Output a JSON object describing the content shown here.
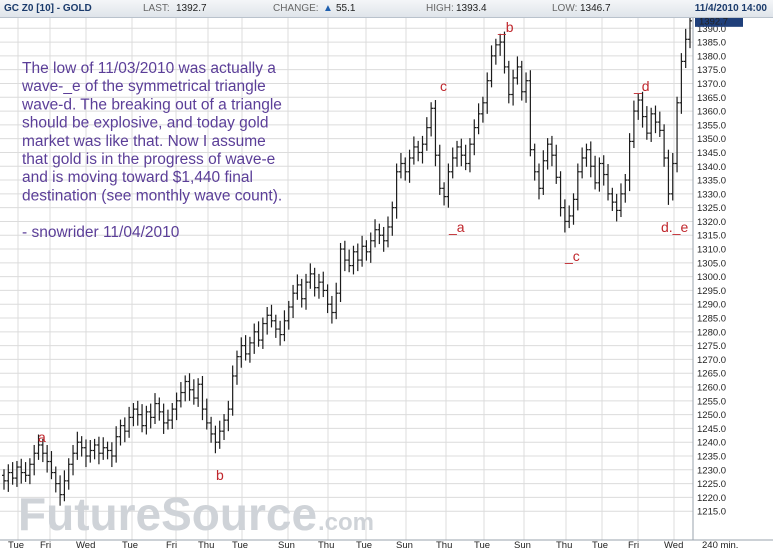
{
  "header": {
    "symbol": "GC Z0 [10] - GOLD",
    "last_label": "LAST:",
    "last_value": "1392.7",
    "change_label": "CHANGE:",
    "change_value": "55.1",
    "high_label": "HIGH:",
    "high_value": "1393.4",
    "low_label": "LOW:",
    "low_value": "1346.7",
    "datetime": "11/4/2010 14:00"
  },
  "colors": {
    "bars": "#1c1c1c",
    "annotation": "#5b3e98",
    "wave_label": "#c0272d",
    "grid": "#dcdcdc"
  },
  "annotation": [
    "The low of 11/03/2010 was actually a",
    "wave-_e of the symmetrical triangle",
    "wave-d.  The breaking out of a triangle",
    "should be explosive, and today gold",
    "market was like that.  Now I assume",
    "that gold is in the progress of wave-e",
    "and is moving toward $1,440 final",
    "destination (see monthly wave count).",
    "",
    "- snowrider  11/04/2010"
  ],
  "watermark": {
    "main": "FutureSource",
    "suffix": ".com"
  },
  "chart_data": {
    "type": "ohlc",
    "interval_label": "240 min.",
    "ylim": [
      1210,
      1393
    ],
    "y_ticks": [
      1215,
      1220,
      1225,
      1230,
      1235,
      1240,
      1245,
      1250,
      1255,
      1260,
      1265,
      1270,
      1275,
      1280,
      1285,
      1290,
      1295,
      1300,
      1305,
      1310,
      1315,
      1320,
      1325,
      1330,
      1335,
      1340,
      1345,
      1350,
      1355,
      1360,
      1365,
      1370,
      1375,
      1380,
      1385,
      1390
    ],
    "last_price_tag": "1392.7",
    "x_ticks": [
      "Tue",
      "Fri",
      "Wed",
      "Tue",
      "Fri",
      "Thu",
      "Tue",
      "Sun",
      "Thu",
      "Tue",
      "Sun",
      "Thu",
      "Tue",
      "Sun",
      "Thu",
      "Tue",
      "Fri",
      "Wed"
    ],
    "series": [
      {
        "values": [
          1226,
          1229,
          1227,
          1231,
          1229,
          1228,
          1232,
          1236,
          1239,
          1236,
          1233,
          1229,
          1225,
          1221,
          1226,
          1232,
          1236,
          1240,
          1238,
          1235,
          1237,
          1239,
          1236,
          1238,
          1237,
          1235,
          1242,
          1246,
          1244,
          1249,
          1252,
          1250,
          1246,
          1251,
          1249,
          1254,
          1251,
          1247,
          1248,
          1252,
          1255,
          1258,
          1262,
          1259,
          1256,
          1261,
          1252,
          1247,
          1243,
          1240,
          1244,
          1248,
          1252,
          1264,
          1271,
          1275,
          1272,
          1276,
          1280,
          1277,
          1283,
          1286,
          1284,
          1281,
          1279,
          1284,
          1289,
          1294,
          1297,
          1292,
          1298,
          1301,
          1296,
          1298,
          1295,
          1290,
          1287,
          1294,
          1310,
          1306,
          1304,
          1309,
          1306,
          1311,
          1309,
          1313,
          1317,
          1315,
          1313,
          1318,
          1325,
          1338,
          1341,
          1338,
          1343,
          1347,
          1345,
          1348,
          1354,
          1361,
          1344,
          1332,
          1329,
          1338,
          1343,
          1347,
          1344,
          1341,
          1348,
          1354,
          1359,
          1363,
          1371,
          1380,
          1384,
          1385,
          1376,
          1366,
          1372,
          1376,
          1367,
          1371,
          1346,
          1338,
          1332,
          1342,
          1348,
          1344,
          1336,
          1325,
          1320,
          1322,
          1328,
          1338,
          1343,
          1346,
          1340,
          1334,
          1341,
          1337,
          1330,
          1327,
          1324,
          1330,
          1335,
          1349,
          1360,
          1364,
          1358,
          1352,
          1359,
          1356,
          1353,
          1343,
          1330,
          1341,
          1363,
          1378,
          1386,
          1392.7
        ],
        "opens": [
          1228,
          1226,
          1229,
          1227,
          1231,
          1229,
          1228,
          1232,
          1236,
          1239,
          1236,
          1233,
          1229,
          1225,
          1221,
          1226,
          1232,
          1236,
          1240,
          1238,
          1235,
          1237,
          1239,
          1236,
          1238,
          1237,
          1235,
          1242,
          1246,
          1244,
          1249,
          1252,
          1250,
          1246,
          1251,
          1249,
          1254,
          1251,
          1247,
          1248,
          1252,
          1255,
          1258,
          1262,
          1259,
          1256,
          1261,
          1252,
          1247,
          1243,
          1240,
          1244,
          1248,
          1252,
          1264,
          1271,
          1275,
          1272,
          1276,
          1280,
          1277,
          1283,
          1286,
          1284,
          1281,
          1279,
          1284,
          1289,
          1294,
          1297,
          1292,
          1298,
          1301,
          1296,
          1298,
          1295,
          1290,
          1287,
          1294,
          1310,
          1306,
          1304,
          1309,
          1306,
          1311,
          1309,
          1313,
          1317,
          1315,
          1313,
          1318,
          1325,
          1338,
          1341,
          1338,
          1343,
          1347,
          1345,
          1348,
          1354,
          1361,
          1344,
          1332,
          1329,
          1338,
          1343,
          1347,
          1344,
          1341,
          1348,
          1354,
          1359,
          1363,
          1371,
          1380,
          1384,
          1385,
          1376,
          1366,
          1372,
          1376,
          1367,
          1371,
          1346,
          1338,
          1332,
          1342,
          1348,
          1344,
          1336,
          1325,
          1320,
          1322,
          1328,
          1338,
          1343,
          1346,
          1340,
          1334,
          1341,
          1337,
          1330,
          1327,
          1324,
          1330,
          1335,
          1349,
          1360,
          1364,
          1358,
          1352,
          1359,
          1356,
          1353,
          1343,
          1330,
          1341,
          1363,
          1378,
          1386
        ]
      }
    ],
    "wave_labels": [
      "a",
      "b",
      "c",
      "_a",
      "_b",
      "_c",
      "_d",
      "d._e"
    ]
  }
}
